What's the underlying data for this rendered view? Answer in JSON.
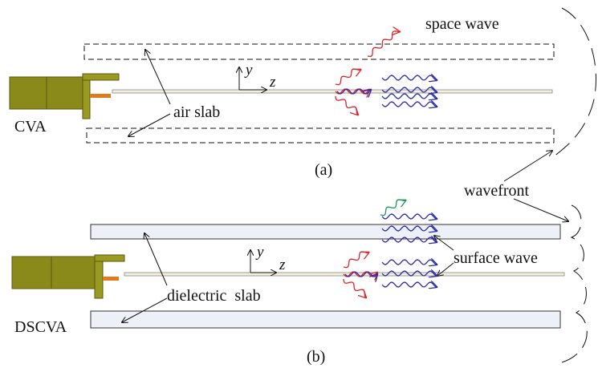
{
  "panel_a": {
    "label": "(a)",
    "antenna": "CVA",
    "slab_label": "air slab",
    "wave_label": "space wave",
    "axis_y": "y",
    "axis_z": "z"
  },
  "panel_b": {
    "label": "(b)",
    "antenna": "DSCVA",
    "slab_label": "dielectric  slab",
    "wave_label": "surface wave",
    "axis_y": "y",
    "axis_z": "z"
  },
  "wavefront": "wavefront"
}
